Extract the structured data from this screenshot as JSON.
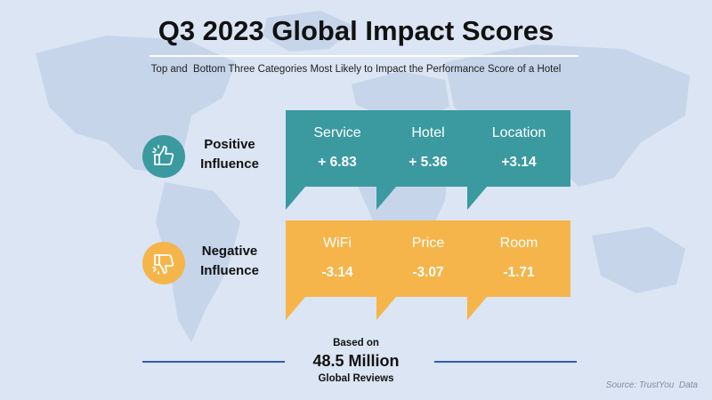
{
  "title": "Q3 2023 Global Impact Scores",
  "subtitle": "Top and  Bottom Three Categories Most Likely to Impact the Performance Score of a Hotel",
  "colors": {
    "positive": "#3a9aa0",
    "negative": "#f5b54a",
    "background": "#dbe5f3",
    "map": "#c6d5ea",
    "footer_line": "#2f5fb3"
  },
  "positive": {
    "label_line1": "Positive",
    "label_line2": "Influence",
    "icon": "thumbs-up-icon",
    "cards": [
      {
        "name": "Service",
        "value": "+ 6.83"
      },
      {
        "name": "Hotel",
        "value": "+ 5.36"
      },
      {
        "name": "Location",
        "value": "+3.14"
      }
    ]
  },
  "negative": {
    "label_line1": "Negative",
    "label_line2": "Influence",
    "icon": "thumbs-down-icon",
    "cards": [
      {
        "name": "WiFi",
        "value": "-3.14"
      },
      {
        "name": "Price",
        "value": "-3.07"
      },
      {
        "name": "Room",
        "value": "-1.71"
      }
    ]
  },
  "footer": {
    "line1": "Based on",
    "line2": "48.5 Million",
    "line3": "Global Reviews",
    "source": "Source: TrustYou  Data"
  }
}
